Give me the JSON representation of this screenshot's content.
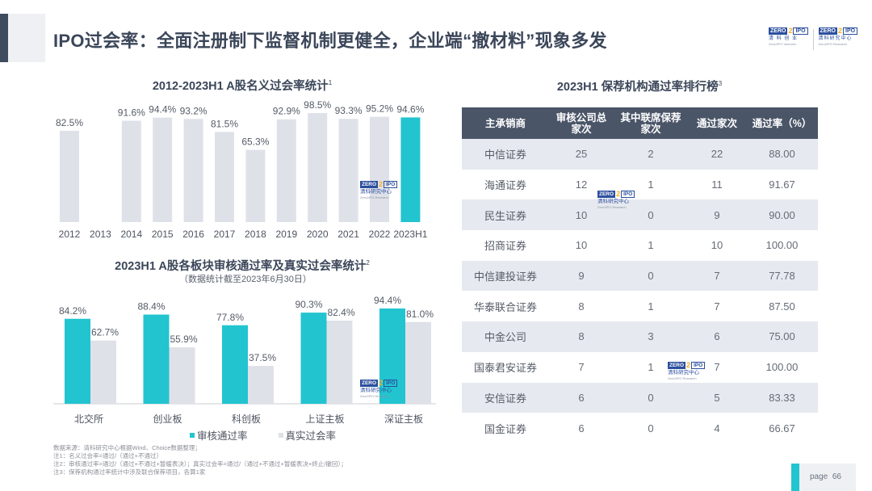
{
  "header": {
    "title": "IPO过会率：全面注册制下监督机制更健全，企业端“撤材料”现象多发",
    "logos": [
      {
        "mark_left": "ZERO",
        "mark_mid": "2",
        "mark_right": "IPO",
        "cn": "清 科 创 业",
        "en": "Zero2IPO Ventures"
      },
      {
        "mark_left": "ZERO",
        "mark_mid": "2",
        "mark_right": "IPO",
        "cn": "清科研究中心",
        "en": "Zero2IPO Research"
      }
    ]
  },
  "watermark": {
    "mark_left": "ZERO",
    "mark_mid": "2",
    "mark_right": "IPO",
    "cn": "清科研究中心",
    "en": "Zero2IPO Research"
  },
  "colors": {
    "teal": "#22c4cf",
    "gray_bar": "#dfe1e8",
    "header_dark": "#4a5568",
    "title": "#3b4659"
  },
  "chart_data": [
    {
      "type": "bar",
      "title": "2012-2023H1 A股名义过会率统计",
      "title_note": "1",
      "xlabel": "",
      "ylabel": "",
      "ylim": [
        0,
        100
      ],
      "grid": false,
      "categories": [
        "2012",
        "2013",
        "2014",
        "2015",
        "2016",
        "2017",
        "2018",
        "2019",
        "2020",
        "2021",
        "2022",
        "2023H1"
      ],
      "values": [
        82.5,
        null,
        91.6,
        94.4,
        93.2,
        81.5,
        65.3,
        92.9,
        98.5,
        93.3,
        95.2,
        94.6
      ],
      "labels": [
        "82.5%",
        "",
        "91.6%",
        "94.4%",
        "93.2%",
        "81.5%",
        "65.3%",
        "92.9%",
        "98.5%",
        "93.3%",
        "95.2%",
        "94.6%"
      ],
      "highlight_index": 11
    },
    {
      "type": "bar",
      "title": "2023H1 A股各板块审核通过率及真实过会率统计",
      "title_note": "2",
      "subtitle": "（数据统计截至2023年6月30日）",
      "xlabel": "",
      "ylabel": "",
      "ylim": [
        0,
        100
      ],
      "grid": false,
      "legend_position": "bottom",
      "categories": [
        "北交所",
        "创业板",
        "科创板",
        "上证主板",
        "深证主板"
      ],
      "series": [
        {
          "name": "审核通过率",
          "values": [
            84.2,
            88.4,
            77.8,
            90.3,
            94.4
          ],
          "labels": [
            "84.2%",
            "88.4%",
            "77.8%",
            "90.3%",
            "94.4%"
          ],
          "color": "#22c4cf"
        },
        {
          "name": "真实过会率",
          "values": [
            62.7,
            55.9,
            37.5,
            82.4,
            81.0
          ],
          "labels": [
            "62.7%",
            "55.9%",
            "37.5%",
            "82.4%",
            "81.0%"
          ],
          "color": "#dfe1e8"
        }
      ]
    },
    {
      "type": "table",
      "title": "2023H1 保荐机构通过率排行榜",
      "title_note": "3",
      "columns": [
        "主承销商",
        "审核公司总家次",
        "其中联席保荐家次",
        "通过家次",
        "通过率（%）"
      ],
      "rows": [
        [
          "中信证券",
          "25",
          "2",
          "22",
          "88.00"
        ],
        [
          "海通证券",
          "12",
          "1",
          "11",
          "91.67"
        ],
        [
          "民生证券",
          "10",
          "0",
          "9",
          "90.00"
        ],
        [
          "招商证券",
          "10",
          "1",
          "10",
          "100.00"
        ],
        [
          "中信建投证券",
          "9",
          "0",
          "7",
          "77.78"
        ],
        [
          "华泰联合证券",
          "8",
          "1",
          "7",
          "87.50"
        ],
        [
          "中金公司",
          "8",
          "3",
          "6",
          "75.00"
        ],
        [
          "国泰君安证券",
          "7",
          "1",
          "7",
          "100.00"
        ],
        [
          "安信证券",
          "6",
          "0",
          "5",
          "83.33"
        ],
        [
          "国金证券",
          "6",
          "0",
          "4",
          "66.67"
        ]
      ]
    }
  ],
  "table_headers": {
    "c0": "主承销商",
    "c1a": "审核公司总",
    "c1b": "家次",
    "c2a": "其中联席保荐",
    "c2b": "家次",
    "c3": "通过家次",
    "c4": "通过率（%）"
  },
  "notes": [
    "数据来源：清科研究中心根据Wind、Choice数据整理；",
    "注1：名义过会率=通过/（通过+不通过）",
    "注2：审核通过率=通过/（通过+不通过+暂缓表决）；真实过会率=通过/（通过+不通过+暂缓表决+终止/撤回）；",
    "注3：保荐机构通过率统计中涉及联合保荐项目，各算1家"
  ],
  "footer": {
    "page_label": "page",
    "page_number": "66"
  }
}
